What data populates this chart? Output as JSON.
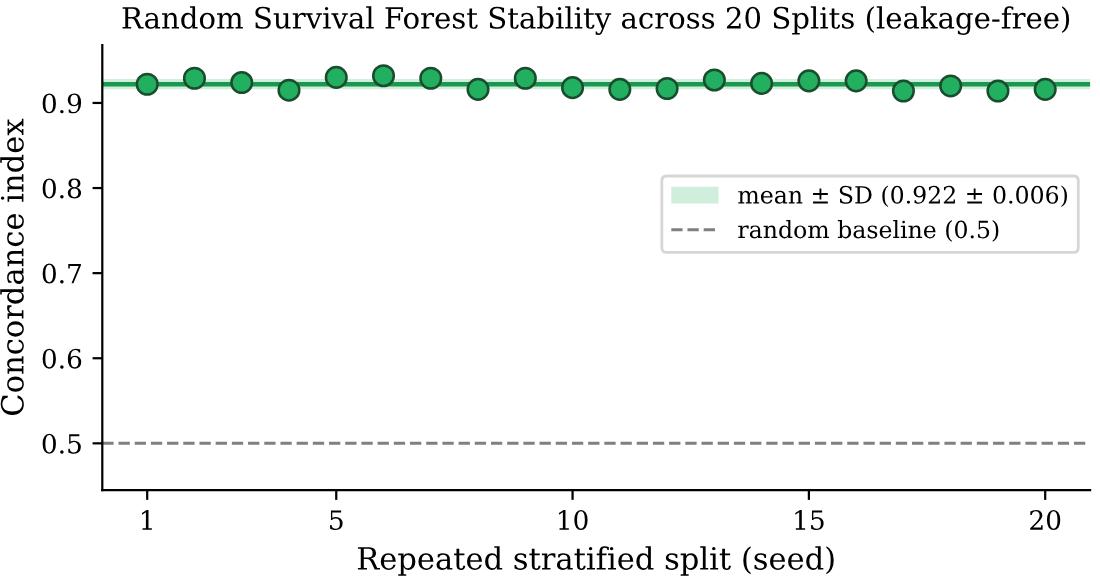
{
  "chart_data": {
    "type": "scatter",
    "title": "Random Survival Forest Stability across 20 Splits (leakage-free)",
    "xlabel": "Repeated stratified split (seed)",
    "ylabel": "Concordance index",
    "x": [
      1,
      2,
      3,
      4,
      5,
      6,
      7,
      8,
      9,
      10,
      11,
      12,
      13,
      14,
      15,
      16,
      17,
      18,
      19,
      20
    ],
    "series": [
      {
        "color": "#22b060",
        "values": [
          0.922,
          0.929,
          0.924,
          0.915,
          0.93,
          0.932,
          0.929,
          0.916,
          0.929,
          0.918,
          0.916,
          0.917,
          0.927,
          0.923,
          0.926,
          0.926,
          0.914,
          0.92,
          0.914,
          0.916
        ]
      }
    ],
    "marker": "circle",
    "xlim": [
      0.05,
      20.95
    ],
    "xticks": [
      1,
      5,
      10,
      15,
      20
    ],
    "ylim": [
      0.445,
      0.968
    ],
    "yticks": [
      0.5,
      0.6,
      0.7,
      0.8,
      0.9
    ],
    "ref_lines": [
      {
        "axis": "y",
        "value": 0.922,
        "color": "#1a9850",
        "line_style": "solid"
      },
      {
        "axis": "y",
        "value": 0.5,
        "label": "random baseline (0.5)",
        "color": "#808080",
        "line_style": "dashed"
      }
    ],
    "bands": [
      {
        "axis": "y",
        "from": 0.916,
        "to": 0.928,
        "label": "mean ± SD (0.922 ± 0.006)",
        "color": "#c4ead3"
      }
    ],
    "legend": "center right",
    "grid": false
  }
}
